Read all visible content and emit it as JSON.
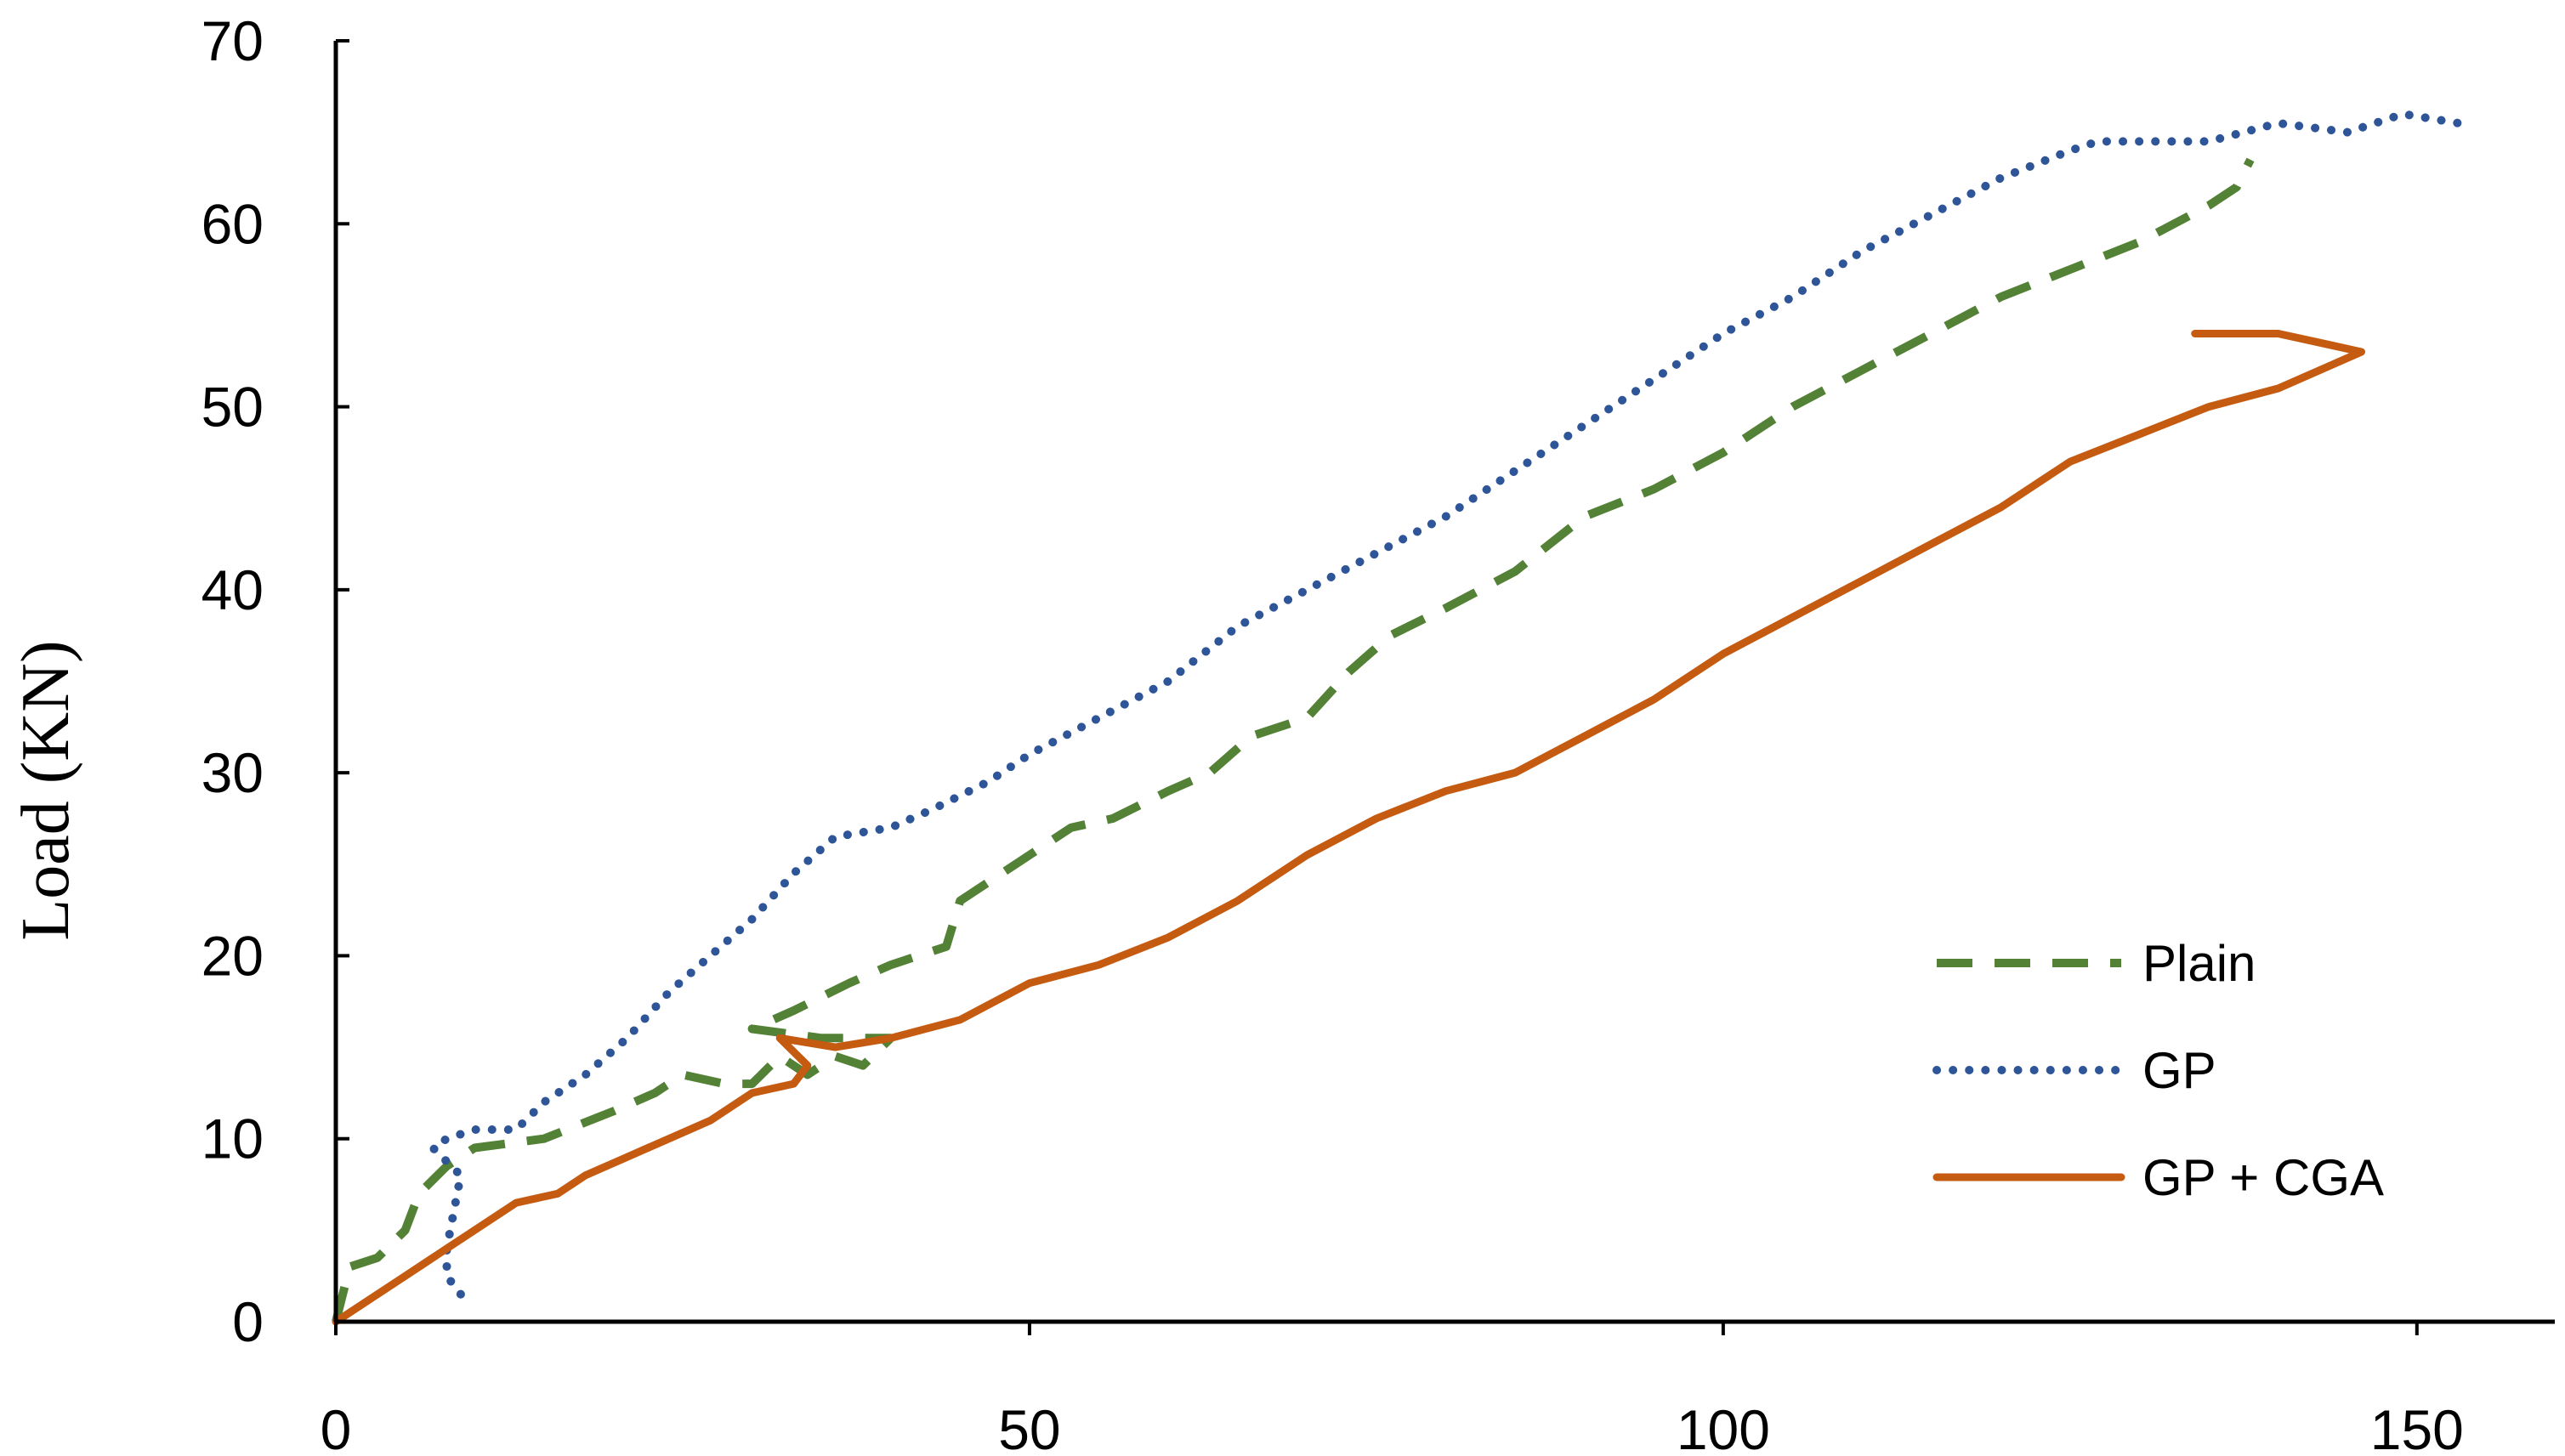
{
  "chart_data": {
    "type": "line",
    "title": "",
    "xlabel": "",
    "ylabel": "Load (KN)",
    "xlim": [
      0,
      160
    ],
    "ylim": [
      0,
      70
    ],
    "xticks": [
      0,
      50,
      100,
      150
    ],
    "yticks": [
      0,
      10,
      20,
      30,
      40,
      50,
      60,
      70
    ],
    "grid": false,
    "legend_position": "bottom-right",
    "series": [
      {
        "name": "Plain",
        "color": "#538135",
        "style": "dashed",
        "points": [
          [
            0,
            0
          ],
          [
            1,
            3
          ],
          [
            3,
            3.5
          ],
          [
            5,
            5
          ],
          [
            6,
            7
          ],
          [
            8,
            8.5
          ],
          [
            10,
            9.5
          ],
          [
            15,
            10
          ],
          [
            20,
            11.5
          ],
          [
            23,
            12.5
          ],
          [
            25,
            13.5
          ],
          [
            28,
            13
          ],
          [
            30,
            13
          ],
          [
            32,
            14.5
          ],
          [
            34,
            13.5
          ],
          [
            36,
            14.5
          ],
          [
            38,
            14
          ],
          [
            40,
            15.5
          ],
          [
            35,
            15.5
          ],
          [
            30,
            16
          ],
          [
            33,
            17
          ],
          [
            37,
            18.5
          ],
          [
            40,
            19.5
          ],
          [
            42,
            20
          ],
          [
            44,
            20.5
          ],
          [
            45,
            23
          ],
          [
            48,
            24.5
          ],
          [
            50,
            25.5
          ],
          [
            53,
            27
          ],
          [
            56,
            27.5
          ],
          [
            60,
            29
          ],
          [
            63,
            30
          ],
          [
            66,
            32
          ],
          [
            70,
            33
          ],
          [
            73,
            35.5
          ],
          [
            76,
            37.5
          ],
          [
            80,
            39
          ],
          [
            85,
            41
          ],
          [
            90,
            44
          ],
          [
            95,
            45.5
          ],
          [
            100,
            47.5
          ],
          [
            105,
            50
          ],
          [
            110,
            52
          ],
          [
            115,
            54
          ],
          [
            120,
            56
          ],
          [
            125,
            57.5
          ],
          [
            130,
            59
          ],
          [
            135,
            61
          ],
          [
            137,
            62
          ],
          [
            138,
            63.5
          ]
        ]
      },
      {
        "name": "GP",
        "color": "#2e5597",
        "style": "dotted",
        "points": [
          [
            9,
            1.5
          ],
          [
            8,
            2.5
          ],
          [
            8,
            4
          ],
          [
            8.5,
            6
          ],
          [
            9,
            8
          ],
          [
            7,
            9.5
          ],
          [
            8,
            10
          ],
          [
            10,
            10.5
          ],
          [
            13,
            10.5
          ],
          [
            15,
            12
          ],
          [
            18,
            13.5
          ],
          [
            21,
            15.5
          ],
          [
            24,
            18
          ],
          [
            27,
            20
          ],
          [
            30,
            22
          ],
          [
            33,
            24.5
          ],
          [
            36,
            26.5
          ],
          [
            40,
            27
          ],
          [
            43,
            28
          ],
          [
            47,
            29.5
          ],
          [
            50,
            31
          ],
          [
            55,
            33
          ],
          [
            60,
            35
          ],
          [
            65,
            38
          ],
          [
            70,
            40
          ],
          [
            75,
            42
          ],
          [
            80,
            44
          ],
          [
            85,
            46.5
          ],
          [
            90,
            49
          ],
          [
            95,
            51.5
          ],
          [
            100,
            54
          ],
          [
            105,
            56
          ],
          [
            110,
            58.5
          ],
          [
            115,
            60.5
          ],
          [
            120,
            62.5
          ],
          [
            125,
            64
          ],
          [
            127,
            64.5
          ],
          [
            130,
            64.5
          ],
          [
            135,
            64.5
          ],
          [
            140,
            65.5
          ],
          [
            145,
            65
          ],
          [
            149,
            66
          ],
          [
            153,
            65.5
          ]
        ]
      },
      {
        "name": "GP + CGA",
        "color": "#c55a11",
        "style": "solid",
        "points": [
          [
            0,
            0
          ],
          [
            2,
            1
          ],
          [
            5,
            2.5
          ],
          [
            8,
            4
          ],
          [
            10,
            5
          ],
          [
            13,
            6.5
          ],
          [
            16,
            7
          ],
          [
            18,
            8
          ],
          [
            21,
            9
          ],
          [
            24,
            10
          ],
          [
            27,
            11
          ],
          [
            30,
            12.5
          ],
          [
            33,
            13
          ],
          [
            34,
            14
          ],
          [
            32,
            15.5
          ],
          [
            36,
            15
          ],
          [
            40,
            15.5
          ],
          [
            45,
            16.5
          ],
          [
            50,
            18.5
          ],
          [
            55,
            19.5
          ],
          [
            60,
            21
          ],
          [
            65,
            23
          ],
          [
            70,
            25.5
          ],
          [
            75,
            27.5
          ],
          [
            80,
            29
          ],
          [
            85,
            30
          ],
          [
            90,
            32
          ],
          [
            95,
            34
          ],
          [
            100,
            36.5
          ],
          [
            105,
            38.5
          ],
          [
            110,
            40.5
          ],
          [
            115,
            42.5
          ],
          [
            120,
            44.5
          ],
          [
            125,
            47
          ],
          [
            130,
            48.5
          ],
          [
            135,
            50
          ],
          [
            140,
            51
          ],
          [
            143,
            52
          ],
          [
            146,
            53
          ],
          [
            143,
            53.5
          ],
          [
            140,
            54
          ],
          [
            134,
            54
          ]
        ]
      }
    ]
  }
}
